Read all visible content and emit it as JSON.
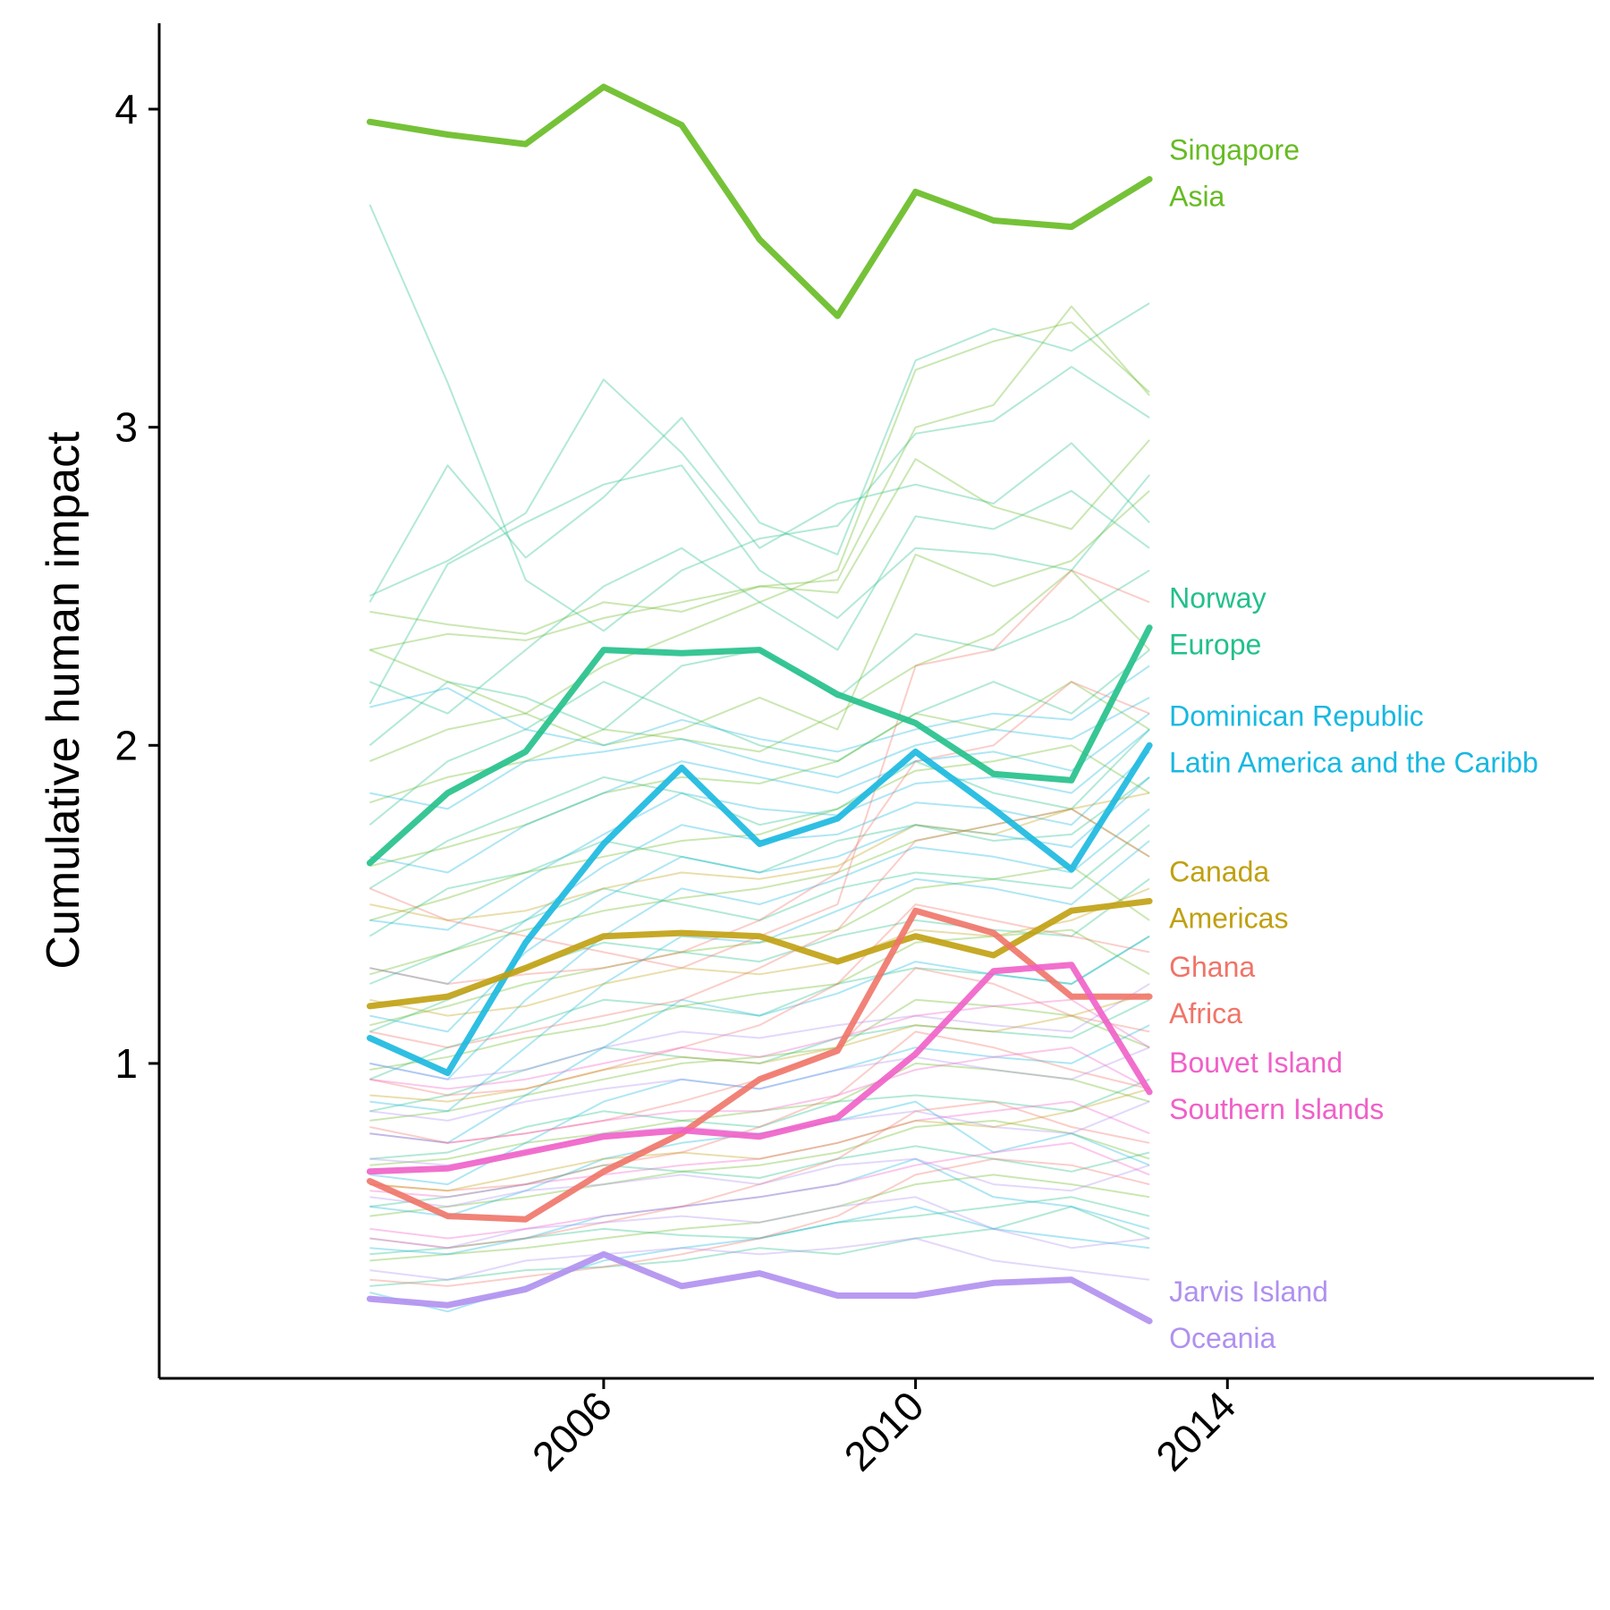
{
  "chart_data": {
    "type": "line",
    "title": "",
    "xlabel": "",
    "ylabel": "Cumulative human impact",
    "x": [
      2003,
      2004,
      2005,
      2006,
      2007,
      2008,
      2009,
      2010,
      2011,
      2012,
      2013
    ],
    "xlim": [
      2000.3,
      2018.7
    ],
    "ylim": [
      0.01,
      4.27
    ],
    "x_ticks": [
      "2006",
      "2010",
      "2014"
    ],
    "y_ticks": [
      "1",
      "2",
      "3",
      "4"
    ],
    "grid": false,
    "legend": "direct labels at right end of lines",
    "highlighted_series": [
      {
        "name": "Singapore",
        "region": "Asia",
        "color": "#66bb22",
        "values": [
          3.96,
          3.92,
          3.89,
          4.07,
          3.95,
          3.59,
          3.35,
          3.74,
          3.65,
          3.63,
          3.78
        ]
      },
      {
        "name": "Norway",
        "region": "Europe",
        "color": "#22c08a",
        "values": [
          1.63,
          1.85,
          1.98,
          2.3,
          2.29,
          2.3,
          2.16,
          2.07,
          1.91,
          1.89,
          2.37
        ]
      },
      {
        "name": "Dominican Republic",
        "region": "Latin America and the Caribb",
        "color": "#18b8e0",
        "values": [
          1.08,
          0.97,
          1.38,
          1.69,
          1.93,
          1.69,
          1.77,
          1.98,
          1.8,
          1.61,
          2.0
        ]
      },
      {
        "name": "Canada",
        "region": "Americas",
        "color": "#c0a010",
        "values": [
          1.18,
          1.21,
          1.3,
          1.4,
          1.41,
          1.4,
          1.32,
          1.4,
          1.34,
          1.48,
          1.51
        ]
      },
      {
        "name": "Ghana",
        "region": "Africa",
        "color": "#f07468",
        "values": [
          0.63,
          0.52,
          0.51,
          0.66,
          0.78,
          0.95,
          1.04,
          1.48,
          1.41,
          1.21,
          1.21
        ]
      },
      {
        "name": "Bouvet Island",
        "region": "Southern Islands",
        "color": "#f060c8",
        "values": [
          0.66,
          0.67,
          0.72,
          0.77,
          0.79,
          0.77,
          0.83,
          1.03,
          1.29,
          1.31,
          0.91
        ]
      },
      {
        "name": "Jarvis Island",
        "region": "Oceania",
        "color": "#b090f0",
        "values": [
          0.26,
          0.24,
          0.29,
          0.4,
          0.3,
          0.34,
          0.27,
          0.27,
          0.31,
          0.32,
          0.19
        ]
      }
    ],
    "background_series": [
      {
        "color": "#22c08a",
        "values": [
          3.7,
          3.14,
          2.52,
          2.36,
          2.55,
          2.65,
          2.69,
          2.98,
          3.02,
          3.19,
          3.03
        ]
      },
      {
        "color": "#22c08a",
        "values": [
          2.45,
          2.88,
          2.59,
          2.78,
          3.03,
          2.7,
          2.6,
          3.21,
          3.31,
          3.24,
          3.39
        ]
      },
      {
        "color": "#22c08a",
        "values": [
          2.47,
          2.58,
          2.73,
          3.15,
          2.92,
          2.62,
          2.76,
          2.82,
          2.76,
          2.95,
          2.7
        ]
      },
      {
        "color": "#22c08a",
        "values": [
          2.13,
          2.57,
          2.7,
          2.82,
          2.88,
          2.55,
          2.4,
          2.62,
          2.6,
          2.55,
          2.85
        ]
      },
      {
        "color": "#22c08a",
        "values": [
          2.2,
          2.1,
          2.3,
          2.5,
          2.62,
          2.45,
          2.3,
          2.72,
          2.68,
          2.8,
          2.62
        ]
      },
      {
        "color": "#22c08a",
        "values": [
          2.0,
          2.2,
          2.15,
          2.05,
          2.25,
          2.3,
          2.15,
          2.35,
          2.3,
          2.4,
          2.55
        ]
      },
      {
        "color": "#22c08a",
        "values": [
          1.75,
          1.95,
          2.05,
          2.2,
          2.1,
          2.0,
          1.95,
          2.1,
          2.2,
          2.1,
          2.3
        ]
      },
      {
        "color": "#22c08a",
        "values": [
          1.55,
          1.7,
          1.8,
          1.9,
          1.85,
          1.75,
          1.8,
          1.95,
          1.85,
          1.8,
          2.05
        ]
      },
      {
        "color": "#22c08a",
        "values": [
          1.4,
          1.55,
          1.6,
          1.7,
          1.65,
          1.6,
          1.7,
          1.75,
          1.7,
          1.72,
          1.9
        ]
      },
      {
        "color": "#22c08a",
        "values": [
          1.25,
          1.35,
          1.45,
          1.55,
          1.5,
          1.45,
          1.55,
          1.6,
          1.58,
          1.55,
          1.75
        ]
      },
      {
        "color": "#22c08a",
        "values": [
          1.1,
          1.2,
          1.3,
          1.38,
          1.35,
          1.32,
          1.4,
          1.45,
          1.42,
          1.4,
          1.58
        ]
      },
      {
        "color": "#22c08a",
        "values": [
          0.95,
          1.05,
          1.12,
          1.2,
          1.18,
          1.15,
          1.25,
          1.3,
          1.28,
          1.25,
          1.4
        ]
      },
      {
        "color": "#22c08a",
        "values": [
          0.85,
          0.9,
          0.98,
          1.05,
          1.02,
          1.0,
          1.08,
          1.12,
          1.1,
          1.08,
          1.2
        ]
      },
      {
        "color": "#22c08a",
        "values": [
          0.7,
          0.72,
          0.8,
          0.85,
          0.82,
          0.8,
          0.88,
          0.9,
          0.88,
          0.85,
          0.95
        ]
      },
      {
        "color": "#22c08a",
        "values": [
          0.55,
          0.58,
          0.62,
          0.68,
          0.66,
          0.64,
          0.7,
          0.74,
          0.7,
          0.66,
          0.72
        ]
      },
      {
        "color": "#22c08a",
        "values": [
          0.4,
          0.42,
          0.45,
          0.48,
          0.46,
          0.45,
          0.5,
          0.52,
          0.55,
          0.58,
          0.52
        ]
      },
      {
        "color": "#22c08a",
        "values": [
          0.3,
          0.32,
          0.35,
          0.36,
          0.38,
          0.42,
          0.4,
          0.45,
          0.48,
          0.55,
          0.45
        ]
      },
      {
        "color": "#66bb22",
        "values": [
          2.3,
          2.35,
          2.33,
          2.4,
          2.45,
          2.5,
          2.52,
          3.0,
          3.07,
          3.38,
          3.1
        ]
      },
      {
        "color": "#66bb22",
        "values": [
          2.3,
          2.2,
          2.1,
          2.25,
          2.35,
          2.45,
          2.55,
          3.18,
          3.27,
          3.33,
          3.11
        ]
      },
      {
        "color": "#66bb22",
        "values": [
          2.42,
          2.38,
          2.35,
          2.45,
          2.42,
          2.5,
          2.48,
          2.9,
          2.75,
          2.68,
          2.96
        ]
      },
      {
        "color": "#66bb22",
        "values": [
          1.95,
          2.05,
          2.1,
          2.0,
          2.05,
          2.15,
          2.05,
          2.6,
          2.5,
          2.58,
          2.8
        ]
      },
      {
        "color": "#66bb22",
        "values": [
          1.82,
          1.9,
          1.95,
          2.05,
          2.02,
          1.98,
          2.1,
          2.25,
          2.35,
          2.55,
          2.3
        ]
      },
      {
        "color": "#66bb22",
        "values": [
          1.62,
          1.68,
          1.75,
          1.85,
          1.9,
          1.88,
          1.95,
          2.1,
          2.05,
          2.2,
          2.05
        ]
      },
      {
        "color": "#66bb22",
        "values": [
          1.45,
          1.52,
          1.6,
          1.65,
          1.7,
          1.72,
          1.8,
          1.92,
          1.95,
          2.0,
          1.85
        ]
      },
      {
        "color": "#66bb22",
        "values": [
          1.28,
          1.35,
          1.42,
          1.48,
          1.52,
          1.55,
          1.6,
          1.7,
          1.75,
          1.8,
          1.65
        ]
      },
      {
        "color": "#66bb22",
        "values": [
          1.12,
          1.18,
          1.25,
          1.3,
          1.35,
          1.38,
          1.42,
          1.55,
          1.58,
          1.62,
          1.45
        ]
      },
      {
        "color": "#66bb22",
        "values": [
          0.98,
          1.02,
          1.08,
          1.12,
          1.18,
          1.22,
          1.25,
          1.38,
          1.4,
          1.42,
          1.28
        ]
      },
      {
        "color": "#66bb22",
        "values": [
          0.82,
          0.85,
          0.9,
          0.95,
          1.0,
          1.02,
          1.05,
          1.2,
          1.18,
          1.15,
          1.05
        ]
      },
      {
        "color": "#66bb22",
        "values": [
          0.68,
          0.7,
          0.75,
          0.78,
          0.82,
          0.85,
          0.88,
          1.0,
          0.98,
          0.95,
          0.88
        ]
      },
      {
        "color": "#66bb22",
        "values": [
          0.52,
          0.55,
          0.58,
          0.62,
          0.66,
          0.68,
          0.72,
          0.8,
          0.82,
          0.78,
          0.7
        ]
      },
      {
        "color": "#66bb22",
        "values": [
          0.38,
          0.4,
          0.42,
          0.45,
          0.48,
          0.5,
          0.55,
          0.62,
          0.65,
          0.62,
          0.58
        ]
      },
      {
        "color": "#18b8e0",
        "values": [
          2.12,
          2.18,
          2.05,
          2.0,
          2.08,
          2.02,
          1.98,
          2.05,
          2.1,
          2.08,
          2.25
        ]
      },
      {
        "color": "#18b8e0",
        "values": [
          1.85,
          1.8,
          1.95,
          1.98,
          2.02,
          1.95,
          1.9,
          2.0,
          2.05,
          2.02,
          2.15
        ]
      },
      {
        "color": "#18b8e0",
        "values": [
          1.65,
          1.6,
          1.75,
          1.85,
          1.95,
          1.9,
          1.85,
          1.95,
          1.98,
          1.92,
          2.1
        ]
      },
      {
        "color": "#18b8e0",
        "values": [
          1.45,
          1.42,
          1.58,
          1.72,
          1.85,
          1.8,
          1.78,
          1.88,
          1.9,
          1.85,
          2.05
        ]
      },
      {
        "color": "#18b8e0",
        "values": [
          1.3,
          1.25,
          1.45,
          1.62,
          1.75,
          1.7,
          1.72,
          1.82,
          1.8,
          1.75,
          1.98
        ]
      },
      {
        "color": "#18b8e0",
        "values": [
          1.15,
          1.1,
          1.35,
          1.52,
          1.65,
          1.6,
          1.65,
          1.75,
          1.72,
          1.68,
          1.9
        ]
      },
      {
        "color": "#18b8e0",
        "values": [
          1.0,
          0.95,
          1.2,
          1.4,
          1.55,
          1.5,
          1.58,
          1.68,
          1.65,
          1.6,
          1.8
        ]
      },
      {
        "color": "#18b8e0",
        "values": [
          0.88,
          0.85,
          1.05,
          1.25,
          1.4,
          1.38,
          1.48,
          1.58,
          1.55,
          1.5,
          1.7
        ]
      },
      {
        "color": "#18b8e0",
        "values": [
          0.78,
          0.75,
          0.9,
          1.05,
          1.2,
          1.15,
          1.22,
          1.32,
          1.28,
          1.25,
          1.4
        ]
      },
      {
        "color": "#18b8e0",
        "values": [
          0.65,
          0.62,
          0.75,
          0.88,
          0.95,
          0.92,
          0.98,
          1.05,
          1.02,
          1.0,
          1.12
        ]
      },
      {
        "color": "#18b8e0",
        "values": [
          0.55,
          0.52,
          0.6,
          0.7,
          0.75,
          0.78,
          0.82,
          0.88,
          0.72,
          0.78,
          0.68
        ]
      },
      {
        "color": "#18b8e0",
        "values": [
          0.42,
          0.4,
          0.45,
          0.52,
          0.55,
          0.58,
          0.62,
          0.7,
          0.58,
          0.55,
          0.48
        ]
      },
      {
        "color": "#18b8e0",
        "values": [
          0.28,
          0.22,
          0.3,
          0.38,
          0.42,
          0.45,
          0.5,
          0.55,
          0.48,
          0.45,
          0.42
        ]
      },
      {
        "color": "#f07468",
        "values": [
          1.55,
          1.45,
          1.4,
          1.35,
          1.3,
          1.4,
          1.5,
          2.25,
          2.3,
          2.55,
          2.45
        ]
      },
      {
        "color": "#f07468",
        "values": [
          1.3,
          1.25,
          1.28,
          1.3,
          1.35,
          1.45,
          1.6,
          1.95,
          2.0,
          2.2,
          2.1
        ]
      },
      {
        "color": "#f07468",
        "values": [
          1.1,
          1.05,
          1.1,
          1.15,
          1.2,
          1.3,
          1.42,
          1.7,
          1.75,
          1.8,
          1.65
        ]
      },
      {
        "color": "#f07468",
        "values": [
          0.95,
          0.9,
          0.92,
          0.98,
          1.05,
          1.12,
          1.25,
          1.5,
          1.45,
          1.4,
          1.35
        ]
      },
      {
        "color": "#f07468",
        "values": [
          0.8,
          0.75,
          0.78,
          0.82,
          0.88,
          0.95,
          1.05,
          1.3,
          1.25,
          1.15,
          1.1
        ]
      },
      {
        "color": "#f07468",
        "values": [
          0.62,
          0.6,
          0.62,
          0.68,
          0.72,
          0.8,
          0.9,
          1.1,
          1.05,
          0.98,
          0.92
        ]
      },
      {
        "color": "#f07468",
        "values": [
          0.45,
          0.42,
          0.45,
          0.5,
          0.55,
          0.62,
          0.7,
          0.85,
          0.88,
          0.8,
          0.75
        ]
      },
      {
        "color": "#f07468",
        "values": [
          0.32,
          0.3,
          0.33,
          0.36,
          0.4,
          0.45,
          0.52,
          0.65,
          0.7,
          0.68,
          0.62
        ]
      },
      {
        "color": "#b090f0",
        "values": [
          1.0,
          0.95,
          0.98,
          1.05,
          1.1,
          1.08,
          1.12,
          1.15,
          1.12,
          1.1,
          1.25
        ]
      },
      {
        "color": "#b090f0",
        "values": [
          0.85,
          0.82,
          0.88,
          0.92,
          0.95,
          0.92,
          0.98,
          1.02,
          0.98,
          0.95,
          1.05
        ]
      },
      {
        "color": "#b090f0",
        "values": [
          0.7,
          0.68,
          0.72,
          0.78,
          0.8,
          0.78,
          0.82,
          0.85,
          0.8,
          0.78,
          0.88
        ]
      },
      {
        "color": "#b090f0",
        "values": [
          0.58,
          0.55,
          0.6,
          0.62,
          0.65,
          0.62,
          0.68,
          0.7,
          0.62,
          0.6,
          0.68
        ]
      },
      {
        "color": "#b090f0",
        "values": [
          0.45,
          0.42,
          0.48,
          0.5,
          0.52,
          0.5,
          0.55,
          0.58,
          0.48,
          0.42,
          0.45
        ]
      },
      {
        "color": "#b090f0",
        "values": [
          0.35,
          0.32,
          0.38,
          0.4,
          0.42,
          0.4,
          0.42,
          0.45,
          0.38,
          0.35,
          0.32
        ]
      },
      {
        "color": "#f060c8",
        "values": [
          0.95,
          0.92,
          0.95,
          1.0,
          1.05,
          1.02,
          1.08,
          1.15,
          1.18,
          1.2,
          1.05
        ]
      },
      {
        "color": "#f060c8",
        "values": [
          0.78,
          0.75,
          0.78,
          0.82,
          0.85,
          0.85,
          0.9,
          0.98,
          1.02,
          1.05,
          0.92
        ]
      },
      {
        "color": "#f060c8",
        "values": [
          0.6,
          0.58,
          0.62,
          0.65,
          0.68,
          0.7,
          0.75,
          0.82,
          0.85,
          0.88,
          0.78
        ]
      },
      {
        "color": "#f060c8",
        "values": [
          0.48,
          0.45,
          0.48,
          0.52,
          0.55,
          0.58,
          0.62,
          0.68,
          0.72,
          0.75,
          0.65
        ]
      },
      {
        "color": "#c0a010",
        "values": [
          1.5,
          1.45,
          1.48,
          1.55,
          1.6,
          1.58,
          1.62,
          1.75,
          1.72,
          1.8,
          1.85
        ]
      },
      {
        "color": "#c0a010",
        "values": [
          1.2,
          1.15,
          1.18,
          1.25,
          1.3,
          1.28,
          1.32,
          1.42,
          1.4,
          1.45,
          1.55
        ]
      },
      {
        "color": "#c0a010",
        "values": [
          0.9,
          0.88,
          0.92,
          0.98,
          1.02,
          1.0,
          1.05,
          1.12,
          1.1,
          1.15,
          1.22
        ]
      },
      {
        "color": "#c0a010",
        "values": [
          0.62,
          0.6,
          0.65,
          0.7,
          0.72,
          0.7,
          0.75,
          0.82,
          0.8,
          0.85,
          0.92
        ]
      }
    ]
  }
}
